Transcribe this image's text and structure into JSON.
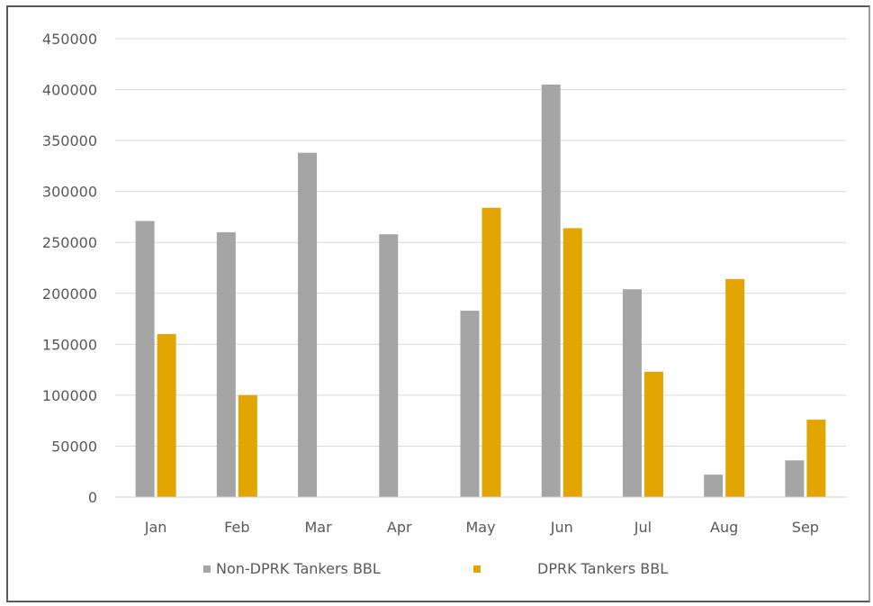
{
  "chart_data": {
    "type": "bar",
    "title": "",
    "xlabel": "",
    "ylabel": "",
    "categories": [
      "Jan",
      "Feb",
      "Mar",
      "Apr",
      "May",
      "Jun",
      "Jul",
      "Aug",
      "Sep"
    ],
    "series": [
      {
        "name": "Non-DPRK Tankers BBL",
        "color": "#a5a5a5",
        "values": [
          271000,
          260000,
          338000,
          258000,
          183000,
          405000,
          204000,
          22000,
          36000
        ]
      },
      {
        "name": "DPRK Tankers BBL",
        "color": "#e3a600",
        "values": [
          160000,
          100000,
          0,
          0,
          284000,
          264000,
          123000,
          214000,
          76000
        ]
      }
    ],
    "ylim": [
      0,
      450000
    ],
    "yticks": [
      "0",
      "50000",
      "100000",
      "150000",
      "200000",
      "250000",
      "300000",
      "350000",
      "400000",
      "450000"
    ],
    "grid": true,
    "legend_position": "bottom"
  }
}
